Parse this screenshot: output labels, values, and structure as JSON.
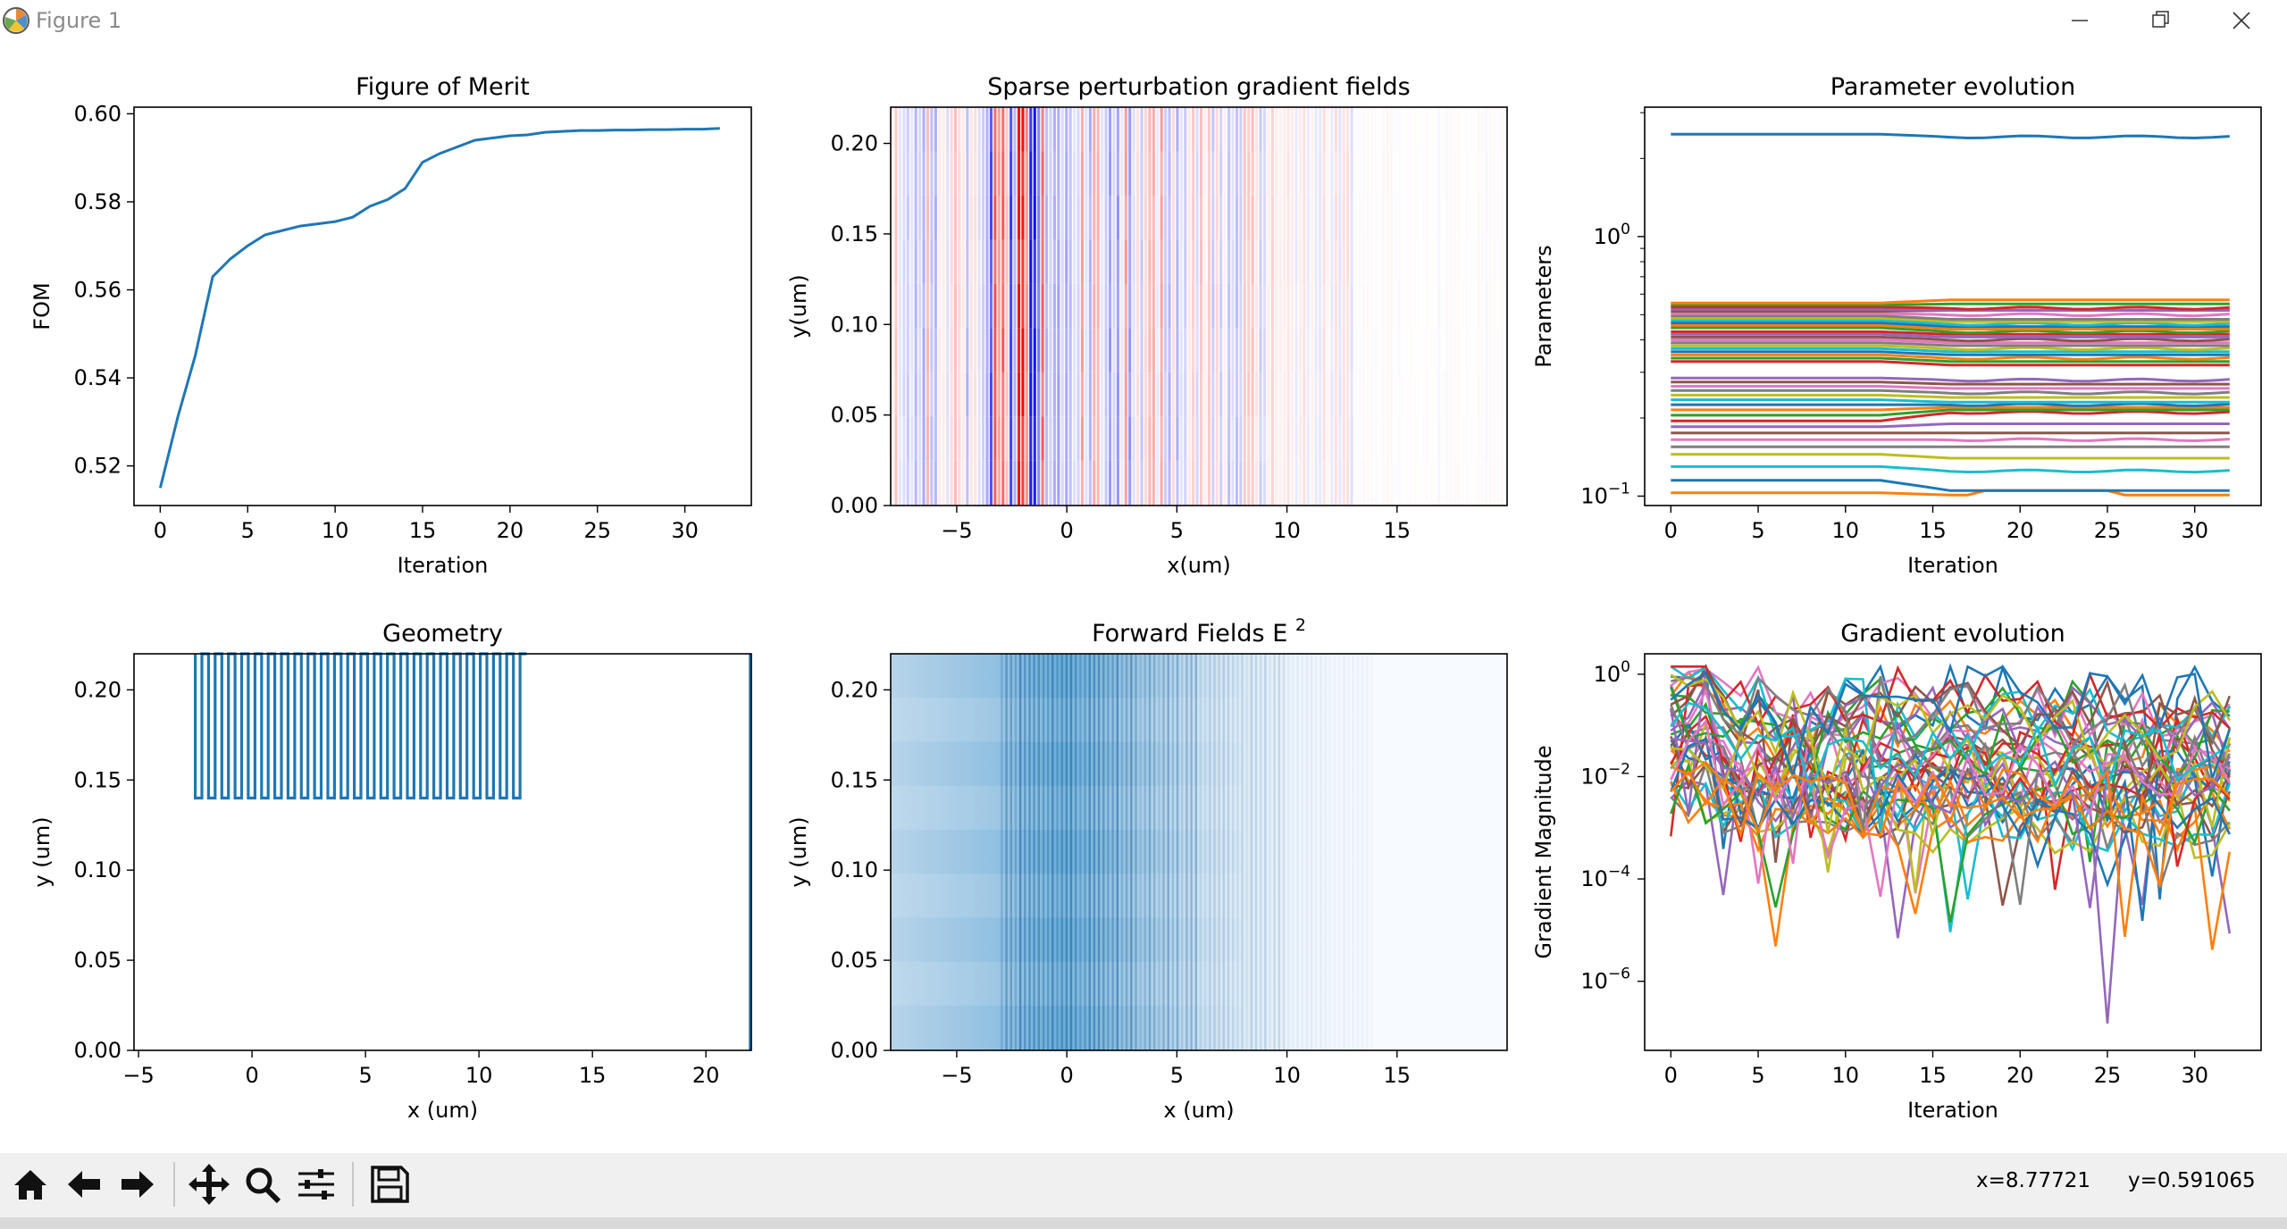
{
  "window": {
    "title": "Figure 1"
  },
  "toolbar": {
    "buttons": [
      "home-icon",
      "back-icon",
      "forward-icon",
      "pan-icon",
      "zoom-icon",
      "configure-subplots-icon",
      "save-icon"
    ],
    "x_readout": "x=8.77721",
    "y_readout": "y=0.591065"
  },
  "colors": {
    "series_default": "#1f77b4",
    "tab10": [
      "#1f77b4",
      "#ff7f0e",
      "#2ca02c",
      "#d62728",
      "#9467bd",
      "#8c564b",
      "#e377c2",
      "#7f7f7f",
      "#bcbd22",
      "#17becf"
    ]
  },
  "chart_data": [
    {
      "id": "fom",
      "type": "line",
      "title": "Figure of Merit",
      "xlabel": "Iteration",
      "ylabel": "FOM",
      "xlim": [
        -1.5,
        33.8
      ],
      "ylim": [
        0.511,
        0.6015
      ],
      "xticks": [
        0,
        5,
        10,
        15,
        20,
        25,
        30
      ],
      "yticks": [
        0.52,
        0.54,
        0.56,
        0.58,
        0.6
      ],
      "ytick_labels": [
        "0.52",
        "0.54",
        "0.56",
        "0.58",
        "0.60"
      ],
      "x": [
        0,
        1,
        2,
        3,
        4,
        5,
        6,
        7,
        8,
        9,
        10,
        11,
        12,
        13,
        14,
        15,
        16,
        17,
        18,
        19,
        20,
        21,
        22,
        23,
        24,
        25,
        26,
        27,
        28,
        29,
        30,
        31,
        32
      ],
      "y": [
        0.515,
        0.531,
        0.545,
        0.563,
        0.567,
        0.57,
        0.5725,
        0.5735,
        0.5745,
        0.575,
        0.5755,
        0.5765,
        0.579,
        0.5805,
        0.583,
        0.589,
        0.591,
        0.5925,
        0.594,
        0.5945,
        0.595,
        0.5952,
        0.5958,
        0.596,
        0.5962,
        0.5962,
        0.5963,
        0.5963,
        0.5964,
        0.5964,
        0.5965,
        0.5965,
        0.5967
      ]
    },
    {
      "id": "sparse",
      "type": "heatmap",
      "title": "Sparse perturbation gradient fields",
      "xlabel": "x(um)",
      "ylabel": "y(um)",
      "xlim": [
        -8,
        20
      ],
      "ylim": [
        0,
        0.22
      ],
      "xticks": [
        -5,
        0,
        5,
        10,
        15
      ],
      "yticks": [
        0,
        0.05,
        0.1,
        0.15,
        0.2
      ],
      "ytick_labels": [
        "0.00",
        "0.05",
        "0.10",
        "0.15",
        "0.20"
      ],
      "colormap": "bwr",
      "description_values": "vertical striped gradient field, strongest near x = -2.5 to -1.5"
    },
    {
      "id": "params",
      "type": "line",
      "title": "Parameter evolution",
      "xlabel": "Iteration",
      "ylabel": "Parameters",
      "yscale": "log",
      "xlim": [
        -1.5,
        33.8
      ],
      "ylim": [
        0.092,
        3.15
      ],
      "xticks": [
        0,
        5,
        10,
        15,
        20,
        25,
        30
      ],
      "yticks": [
        1,
        0.1
      ],
      "ytick_labels_major": [
        "10",
        "10"
      ],
      "ytick_exponents": [
        "0",
        "−1"
      ],
      "series_count": 42,
      "start_levels": [
        2.48,
        0.555,
        0.545,
        0.535,
        0.525,
        0.515,
        0.505,
        0.495,
        0.485,
        0.475,
        0.465,
        0.455,
        0.445,
        0.43,
        0.42,
        0.41,
        0.4,
        0.39,
        0.38,
        0.37,
        0.36,
        0.35,
        0.34,
        0.33,
        0.285,
        0.275,
        0.265,
        0.255,
        0.245,
        0.235,
        0.225,
        0.215,
        0.205,
        0.195,
        0.185,
        0.175,
        0.165,
        0.155,
        0.145,
        0.13,
        0.115,
        0.103
      ],
      "end_levels": [
        2.42,
        0.57,
        0.55,
        0.53,
        0.52,
        0.52,
        0.5,
        0.48,
        0.47,
        0.46,
        0.45,
        0.44,
        0.43,
        0.42,
        0.41,
        0.4,
        0.39,
        0.38,
        0.37,
        0.36,
        0.35,
        0.34,
        0.33,
        0.32,
        0.28,
        0.27,
        0.26,
        0.25,
        0.24,
        0.23,
        0.225,
        0.22,
        0.215,
        0.21,
        0.19,
        0.175,
        0.165,
        0.155,
        0.14,
        0.125,
        0.105,
        0.101
      ]
    },
    {
      "id": "geometry",
      "type": "line",
      "title": "Geometry",
      "xlabel": "x (um)",
      "ylabel": "y (um)",
      "xlim": [
        -5.2,
        22
      ],
      "ylim": [
        0,
        0.22
      ],
      "xticks": [
        -5,
        0,
        5,
        10,
        15,
        20
      ],
      "yticks": [
        0,
        0.05,
        0.1,
        0.15,
        0.2
      ],
      "ytick_labels": [
        "0.00",
        "0.05",
        "0.10",
        "0.15",
        "0.20"
      ],
      "teeth_x_start": -2.5,
      "teeth_x_end": 12.1,
      "teeth_count": 25,
      "y_top": 0.22,
      "y_bottom": 0.14,
      "right_edge_x": 21.95
    },
    {
      "id": "forward",
      "type": "heatmap",
      "title": "Forward Fields E",
      "title_sup": "2",
      "xlabel": "x (um)",
      "ylabel": "y (um)",
      "xlim": [
        -8,
        20
      ],
      "ylim": [
        0,
        0.22
      ],
      "xticks": [
        -5,
        0,
        5,
        10,
        15
      ],
      "yticks": [
        0,
        0.05,
        0.1,
        0.15,
        0.2
      ],
      "ytick_labels": [
        "0.00",
        "0.05",
        "0.10",
        "0.15",
        "0.20"
      ],
      "colormap": "Blues",
      "description_values": "intensity peaks near x = 0 to 2, fades to zero beyond x = 10"
    },
    {
      "id": "gradient",
      "type": "line",
      "title": "Gradient evolution",
      "xlabel": "Iteration",
      "ylabel": "Gradient Magnitude",
      "yscale": "log",
      "xlim": [
        -1.5,
        33.8
      ],
      "ylim_exp": [
        -7.35,
        0.4
      ],
      "xticks": [
        0,
        5,
        10,
        15,
        20,
        25,
        30
      ],
      "yticks_exp": [
        0,
        -2,
        -4,
        -6
      ],
      "ytick_exponents": [
        "0",
        "−2",
        "−4",
        "−6"
      ],
      "series_count": 42,
      "notable_min": {
        "x": 25,
        "value": 1.5e-07
      }
    }
  ]
}
